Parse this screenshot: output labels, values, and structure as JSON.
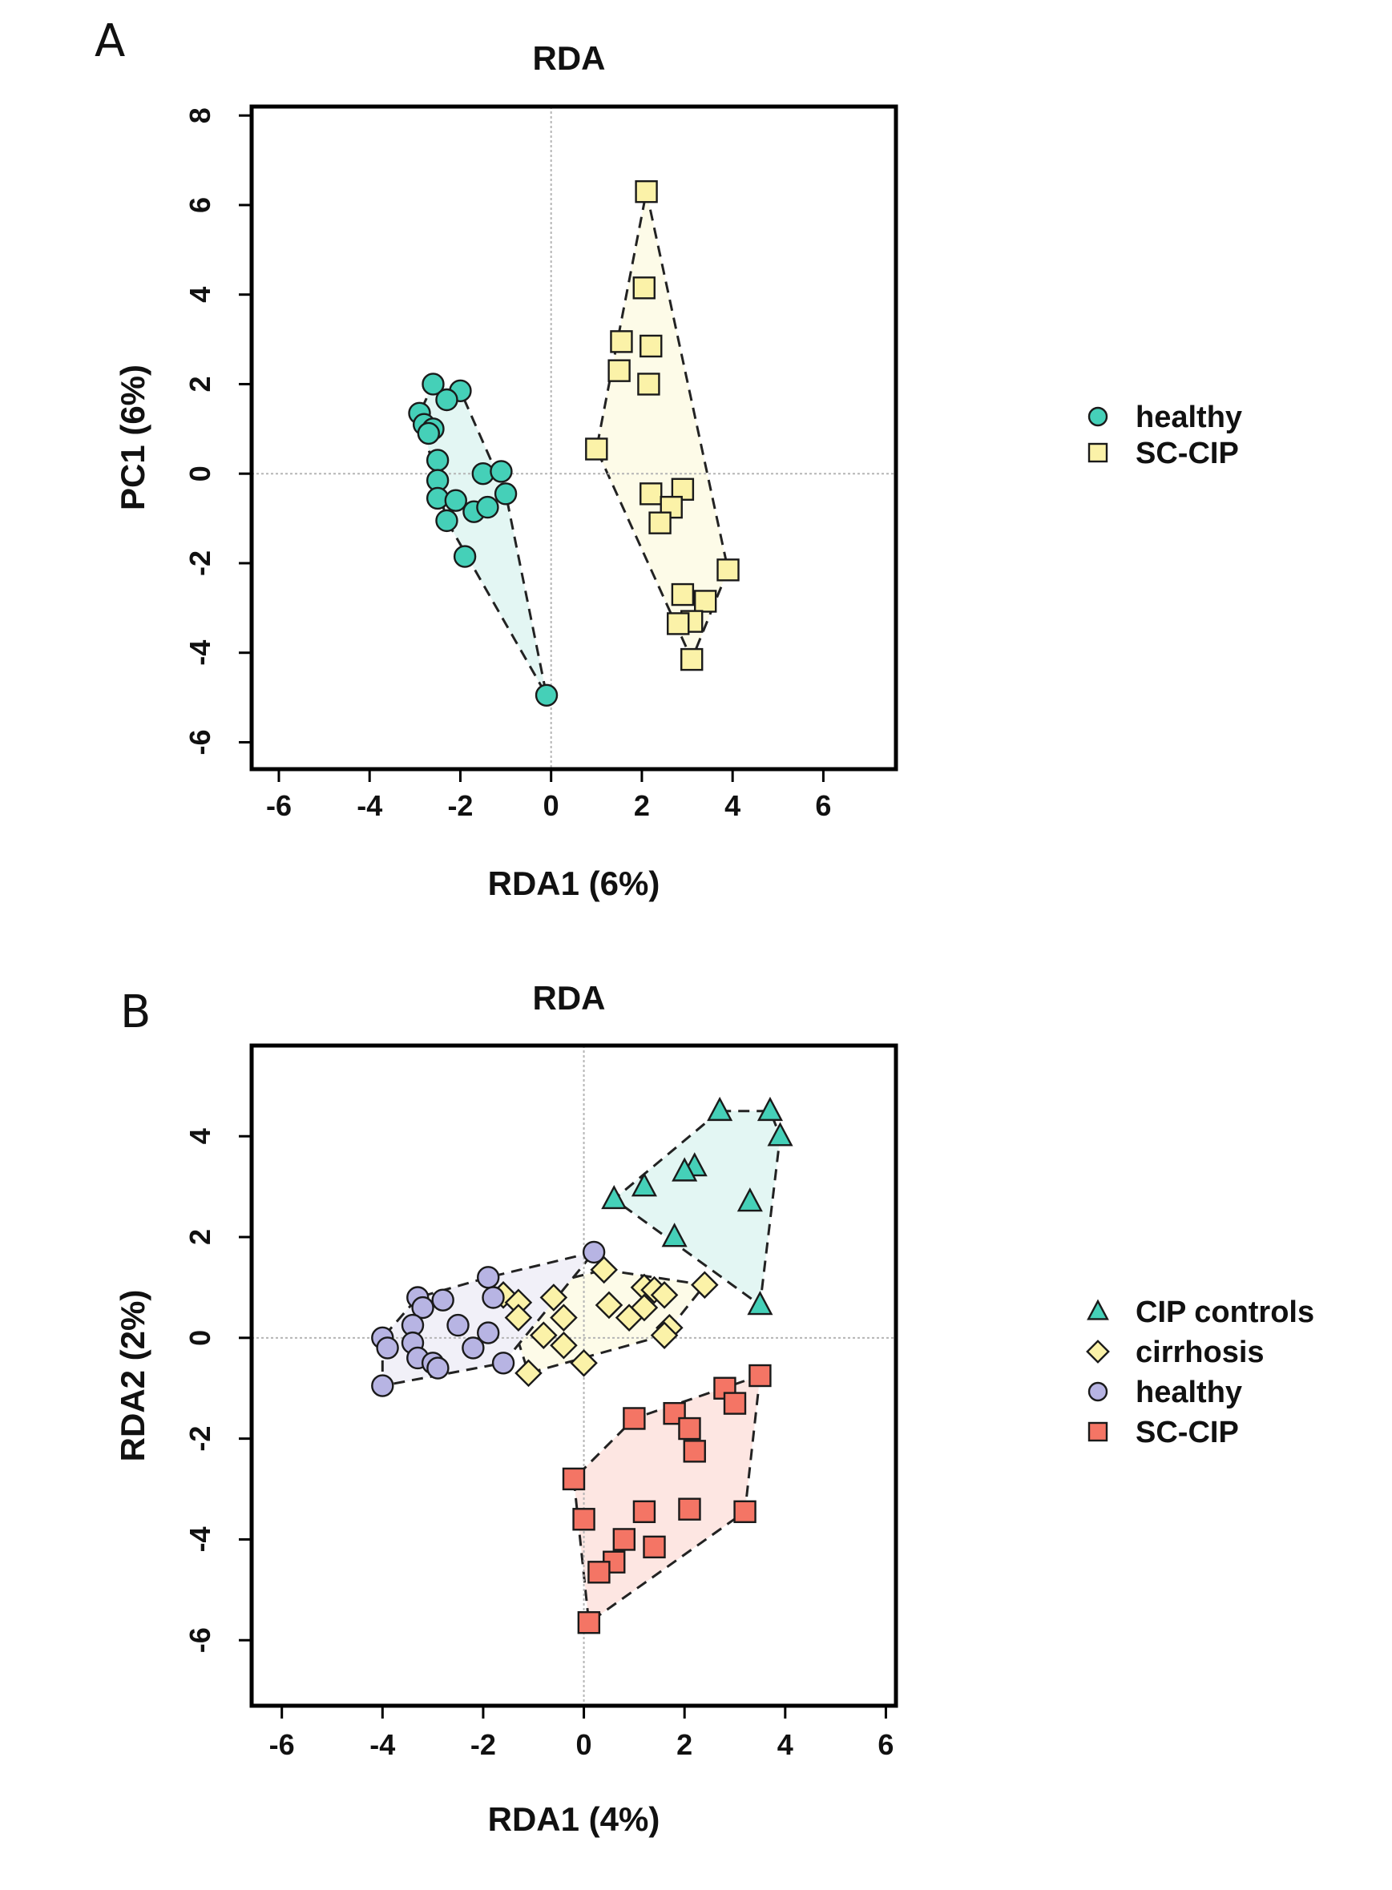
{
  "chart_data": [
    {
      "panel": "A",
      "type": "scatter",
      "title": "RDA",
      "xlabel": "RDA1 (6%)",
      "ylabel": "PC1 (6%)",
      "xlim": [
        -6.6,
        7.6
      ],
      "ylim": [
        -6.6,
        8.2
      ],
      "xticks": [
        -6,
        -4,
        -2,
        0,
        2,
        4,
        6
      ],
      "yticks": [
        -6,
        -4,
        -2,
        0,
        2,
        4,
        6,
        8
      ],
      "xtick_labels": [
        "-6",
        "-4",
        "-2",
        "0",
        "2",
        "4",
        "6"
      ],
      "ytick_labels": [
        "-6",
        "-4",
        "-2",
        "0",
        "2",
        "4",
        "6",
        "8"
      ],
      "reference_lines": {
        "x": 0,
        "y": 0
      },
      "legend_position": "right",
      "series": [
        {
          "name": "healthy",
          "color": "#45d0b8",
          "marker": "circle",
          "hull_color": "#e3f6f3",
          "points": [
            [
              -2.6,
              2.0
            ],
            [
              -2.0,
              1.85
            ],
            [
              -2.3,
              1.65
            ],
            [
              -2.9,
              1.35
            ],
            [
              -2.8,
              1.1
            ],
            [
              -2.6,
              1.0
            ],
            [
              -2.7,
              0.9
            ],
            [
              -2.5,
              0.3
            ],
            [
              -1.5,
              0.0
            ],
            [
              -1.1,
              0.05
            ],
            [
              -2.5,
              -0.15
            ],
            [
              -1.0,
              -0.45
            ],
            [
              -2.5,
              -0.55
            ],
            [
              -2.1,
              -0.6
            ],
            [
              -1.7,
              -0.85
            ],
            [
              -1.4,
              -0.75
            ],
            [
              -2.3,
              -1.05
            ],
            [
              -1.9,
              -1.85
            ],
            [
              -0.1,
              -4.95
            ]
          ],
          "hull": [
            [
              -2.6,
              2.0
            ],
            [
              -2.0,
              1.85
            ],
            [
              -1.0,
              -0.45
            ],
            [
              -0.1,
              -4.95
            ],
            [
              -2.3,
              -1.05
            ],
            [
              -2.9,
              1.35
            ]
          ]
        },
        {
          "name": "SC-CIP",
          "color": "#fbf2a8",
          "marker": "square",
          "hull_color": "#fdfbe8",
          "points": [
            [
              2.1,
              6.3
            ],
            [
              2.05,
              4.15
            ],
            [
              1.55,
              2.95
            ],
            [
              2.2,
              2.85
            ],
            [
              1.5,
              2.3
            ],
            [
              2.15,
              2.0
            ],
            [
              1.0,
              0.55
            ],
            [
              2.2,
              -0.45
            ],
            [
              2.9,
              -0.35
            ],
            [
              2.65,
              -0.75
            ],
            [
              2.4,
              -1.1
            ],
            [
              3.9,
              -2.15
            ],
            [
              2.9,
              -2.7
            ],
            [
              3.4,
              -2.85
            ],
            [
              3.1,
              -3.3
            ],
            [
              2.8,
              -3.35
            ],
            [
              3.1,
              -4.15
            ]
          ],
          "hull": [
            [
              2.1,
              6.3
            ],
            [
              3.9,
              -2.15
            ],
            [
              3.1,
              -4.15
            ],
            [
              1.0,
              0.55
            ]
          ]
        }
      ]
    },
    {
      "panel": "B",
      "type": "scatter",
      "title": "RDA",
      "xlabel": "RDA1 (4%)",
      "ylabel": "RDA2 (2%)",
      "xlim": [
        -6.6,
        6.2
      ],
      "ylim": [
        -7.3,
        5.8
      ],
      "xticks": [
        -6,
        -4,
        -2,
        0,
        2,
        4,
        6
      ],
      "yticks": [
        -6,
        -4,
        -2,
        0,
        2,
        4
      ],
      "xtick_labels": [
        "-6",
        "-4",
        "-2",
        "0",
        "2",
        "4",
        "6"
      ],
      "ytick_labels": [
        "-6",
        "-4",
        "-2",
        "0",
        "2",
        "4"
      ],
      "reference_lines": {
        "x": 0,
        "y": 0
      },
      "legend_position": "right",
      "series": [
        {
          "name": "CIP controls",
          "color": "#45d0b8",
          "marker": "triangle",
          "hull_color": "#e3f6f3",
          "points": [
            [
              2.7,
              4.5
            ],
            [
              3.7,
              4.5
            ],
            [
              3.9,
              4.0
            ],
            [
              2.2,
              3.4
            ],
            [
              2.0,
              3.3
            ],
            [
              1.2,
              3.0
            ],
            [
              0.6,
              2.75
            ],
            [
              3.3,
              2.7
            ],
            [
              1.8,
              2.0
            ],
            [
              3.5,
              0.65
            ]
          ],
          "hull": [
            [
              2.7,
              4.5
            ],
            [
              3.7,
              4.5
            ],
            [
              3.9,
              4.0
            ],
            [
              3.5,
              0.65
            ],
            [
              0.6,
              2.75
            ]
          ]
        },
        {
          "name": "cirrhosis",
          "color": "#fbf2a8",
          "marker": "diamond",
          "hull_color": "#fdfbe8",
          "points": [
            [
              0.4,
              1.35
            ],
            [
              2.4,
              1.05
            ],
            [
              1.2,
              1.0
            ],
            [
              1.4,
              0.95
            ],
            [
              1.6,
              0.85
            ],
            [
              -1.6,
              0.85
            ],
            [
              -0.6,
              0.8
            ],
            [
              -1.3,
              0.7
            ],
            [
              0.5,
              0.65
            ],
            [
              1.2,
              0.6
            ],
            [
              -0.4,
              0.4
            ],
            [
              0.9,
              0.4
            ],
            [
              -1.3,
              0.4
            ],
            [
              1.7,
              0.2
            ],
            [
              -0.8,
              0.05
            ],
            [
              1.6,
              0.05
            ],
            [
              -0.4,
              -0.15
            ],
            [
              0.0,
              -0.5
            ],
            [
              -1.1,
              -0.7
            ]
          ],
          "hull": [
            [
              0.4,
              1.35
            ],
            [
              2.4,
              1.05
            ],
            [
              1.6,
              0.05
            ],
            [
              -1.1,
              -0.7
            ],
            [
              -1.6,
              0.85
            ]
          ]
        },
        {
          "name": "healthy",
          "color": "#b7b4e3",
          "marker": "circle",
          "hull_color": "#f1f0f8",
          "points": [
            [
              0.2,
              1.7
            ],
            [
              -1.9,
              1.2
            ],
            [
              -3.3,
              0.8
            ],
            [
              -2.8,
              0.75
            ],
            [
              -1.8,
              0.8
            ],
            [
              -3.2,
              0.6
            ],
            [
              -2.5,
              0.25
            ],
            [
              -3.4,
              0.25
            ],
            [
              -1.9,
              0.1
            ],
            [
              -4.0,
              0.0
            ],
            [
              -3.4,
              -0.1
            ],
            [
              -2.2,
              -0.2
            ],
            [
              -3.9,
              -0.2
            ],
            [
              -3.3,
              -0.4
            ],
            [
              -3.0,
              -0.5
            ],
            [
              -2.9,
              -0.6
            ],
            [
              -1.6,
              -0.5
            ],
            [
              -4.0,
              -0.95
            ]
          ],
          "hull": [
            [
              0.2,
              1.7
            ],
            [
              -1.9,
              1.2
            ],
            [
              -3.3,
              0.8
            ],
            [
              -4.0,
              0.0
            ],
            [
              -4.0,
              -0.95
            ],
            [
              -1.6,
              -0.5
            ]
          ]
        },
        {
          "name": "SC-CIP",
          "color": "#f47565",
          "marker": "square",
          "hull_color": "#fde6e2",
          "points": [
            [
              3.5,
              -0.75
            ],
            [
              2.8,
              -1.0
            ],
            [
              3.0,
              -1.3
            ],
            [
              1.8,
              -1.5
            ],
            [
              1.0,
              -1.6
            ],
            [
              2.1,
              -1.8
            ],
            [
              2.2,
              -2.25
            ],
            [
              -0.2,
              -2.8
            ],
            [
              1.2,
              -3.45
            ],
            [
              2.1,
              -3.4
            ],
            [
              3.2,
              -3.45
            ],
            [
              0.0,
              -3.6
            ],
            [
              0.8,
              -4.0
            ],
            [
              1.4,
              -4.15
            ],
            [
              0.6,
              -4.45
            ],
            [
              0.3,
              -4.65
            ],
            [
              0.1,
              -5.65
            ]
          ],
          "hull": [
            [
              3.5,
              -0.75
            ],
            [
              3.2,
              -3.45
            ],
            [
              0.1,
              -5.65
            ],
            [
              -0.2,
              -2.8
            ],
            [
              1.0,
              -1.6
            ]
          ]
        }
      ]
    }
  ]
}
